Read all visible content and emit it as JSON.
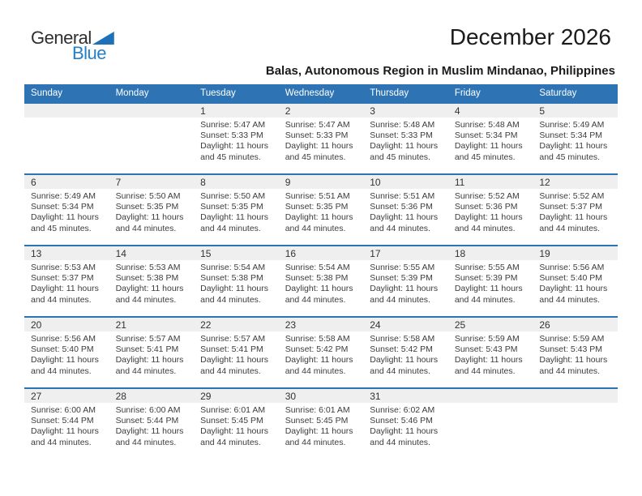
{
  "logo": {
    "part1": "General",
    "part2": "Blue"
  },
  "header": {
    "title": "December 2026",
    "subtitle": "Balas, Autonomous Region in Muslim Mindanao, Philippines"
  },
  "colors": {
    "header_bg": "#2e74b5",
    "week_divider": "#2e74b5",
    "day_band_bg": "#efefef",
    "logo_blue": "#2380c6",
    "logo_triangle": "#1d71b8"
  },
  "weekdays": [
    "Sunday",
    "Monday",
    "Tuesday",
    "Wednesday",
    "Thursday",
    "Friday",
    "Saturday"
  ],
  "weeks": [
    [
      {
        "day": ""
      },
      {
        "day": ""
      },
      {
        "day": "1",
        "sunrise": "Sunrise: 5:47 AM",
        "sunset": "Sunset: 5:33 PM",
        "daylight": "Daylight: 11 hours and 45 minutes."
      },
      {
        "day": "2",
        "sunrise": "Sunrise: 5:47 AM",
        "sunset": "Sunset: 5:33 PM",
        "daylight": "Daylight: 11 hours and 45 minutes."
      },
      {
        "day": "3",
        "sunrise": "Sunrise: 5:48 AM",
        "sunset": "Sunset: 5:33 PM",
        "daylight": "Daylight: 11 hours and 45 minutes."
      },
      {
        "day": "4",
        "sunrise": "Sunrise: 5:48 AM",
        "sunset": "Sunset: 5:34 PM",
        "daylight": "Daylight: 11 hours and 45 minutes."
      },
      {
        "day": "5",
        "sunrise": "Sunrise: 5:49 AM",
        "sunset": "Sunset: 5:34 PM",
        "daylight": "Daylight: 11 hours and 45 minutes."
      }
    ],
    [
      {
        "day": "6",
        "sunrise": "Sunrise: 5:49 AM",
        "sunset": "Sunset: 5:34 PM",
        "daylight": "Daylight: 11 hours and 45 minutes."
      },
      {
        "day": "7",
        "sunrise": "Sunrise: 5:50 AM",
        "sunset": "Sunset: 5:35 PM",
        "daylight": "Daylight: 11 hours and 44 minutes."
      },
      {
        "day": "8",
        "sunrise": "Sunrise: 5:50 AM",
        "sunset": "Sunset: 5:35 PM",
        "daylight": "Daylight: 11 hours and 44 minutes."
      },
      {
        "day": "9",
        "sunrise": "Sunrise: 5:51 AM",
        "sunset": "Sunset: 5:35 PM",
        "daylight": "Daylight: 11 hours and 44 minutes."
      },
      {
        "day": "10",
        "sunrise": "Sunrise: 5:51 AM",
        "sunset": "Sunset: 5:36 PM",
        "daylight": "Daylight: 11 hours and 44 minutes."
      },
      {
        "day": "11",
        "sunrise": "Sunrise: 5:52 AM",
        "sunset": "Sunset: 5:36 PM",
        "daylight": "Daylight: 11 hours and 44 minutes."
      },
      {
        "day": "12",
        "sunrise": "Sunrise: 5:52 AM",
        "sunset": "Sunset: 5:37 PM",
        "daylight": "Daylight: 11 hours and 44 minutes."
      }
    ],
    [
      {
        "day": "13",
        "sunrise": "Sunrise: 5:53 AM",
        "sunset": "Sunset: 5:37 PM",
        "daylight": "Daylight: 11 hours and 44 minutes."
      },
      {
        "day": "14",
        "sunrise": "Sunrise: 5:53 AM",
        "sunset": "Sunset: 5:38 PM",
        "daylight": "Daylight: 11 hours and 44 minutes."
      },
      {
        "day": "15",
        "sunrise": "Sunrise: 5:54 AM",
        "sunset": "Sunset: 5:38 PM",
        "daylight": "Daylight: 11 hours and 44 minutes."
      },
      {
        "day": "16",
        "sunrise": "Sunrise: 5:54 AM",
        "sunset": "Sunset: 5:38 PM",
        "daylight": "Daylight: 11 hours and 44 minutes."
      },
      {
        "day": "17",
        "sunrise": "Sunrise: 5:55 AM",
        "sunset": "Sunset: 5:39 PM",
        "daylight": "Daylight: 11 hours and 44 minutes."
      },
      {
        "day": "18",
        "sunrise": "Sunrise: 5:55 AM",
        "sunset": "Sunset: 5:39 PM",
        "daylight": "Daylight: 11 hours and 44 minutes."
      },
      {
        "day": "19",
        "sunrise": "Sunrise: 5:56 AM",
        "sunset": "Sunset: 5:40 PM",
        "daylight": "Daylight: 11 hours and 44 minutes."
      }
    ],
    [
      {
        "day": "20",
        "sunrise": "Sunrise: 5:56 AM",
        "sunset": "Sunset: 5:40 PM",
        "daylight": "Daylight: 11 hours and 44 minutes."
      },
      {
        "day": "21",
        "sunrise": "Sunrise: 5:57 AM",
        "sunset": "Sunset: 5:41 PM",
        "daylight": "Daylight: 11 hours and 44 minutes."
      },
      {
        "day": "22",
        "sunrise": "Sunrise: 5:57 AM",
        "sunset": "Sunset: 5:41 PM",
        "daylight": "Daylight: 11 hours and 44 minutes."
      },
      {
        "day": "23",
        "sunrise": "Sunrise: 5:58 AM",
        "sunset": "Sunset: 5:42 PM",
        "daylight": "Daylight: 11 hours and 44 minutes."
      },
      {
        "day": "24",
        "sunrise": "Sunrise: 5:58 AM",
        "sunset": "Sunset: 5:42 PM",
        "daylight": "Daylight: 11 hours and 44 minutes."
      },
      {
        "day": "25",
        "sunrise": "Sunrise: 5:59 AM",
        "sunset": "Sunset: 5:43 PM",
        "daylight": "Daylight: 11 hours and 44 minutes."
      },
      {
        "day": "26",
        "sunrise": "Sunrise: 5:59 AM",
        "sunset": "Sunset: 5:43 PM",
        "daylight": "Daylight: 11 hours and 44 minutes."
      }
    ],
    [
      {
        "day": "27",
        "sunrise": "Sunrise: 6:00 AM",
        "sunset": "Sunset: 5:44 PM",
        "daylight": "Daylight: 11 hours and 44 minutes."
      },
      {
        "day": "28",
        "sunrise": "Sunrise: 6:00 AM",
        "sunset": "Sunset: 5:44 PM",
        "daylight": "Daylight: 11 hours and 44 minutes."
      },
      {
        "day": "29",
        "sunrise": "Sunrise: 6:01 AM",
        "sunset": "Sunset: 5:45 PM",
        "daylight": "Daylight: 11 hours and 44 minutes."
      },
      {
        "day": "30",
        "sunrise": "Sunrise: 6:01 AM",
        "sunset": "Sunset: 5:45 PM",
        "daylight": "Daylight: 11 hours and 44 minutes."
      },
      {
        "day": "31",
        "sunrise": "Sunrise: 6:02 AM",
        "sunset": "Sunset: 5:46 PM",
        "daylight": "Daylight: 11 hours and 44 minutes."
      },
      {
        "day": ""
      },
      {
        "day": ""
      }
    ]
  ]
}
